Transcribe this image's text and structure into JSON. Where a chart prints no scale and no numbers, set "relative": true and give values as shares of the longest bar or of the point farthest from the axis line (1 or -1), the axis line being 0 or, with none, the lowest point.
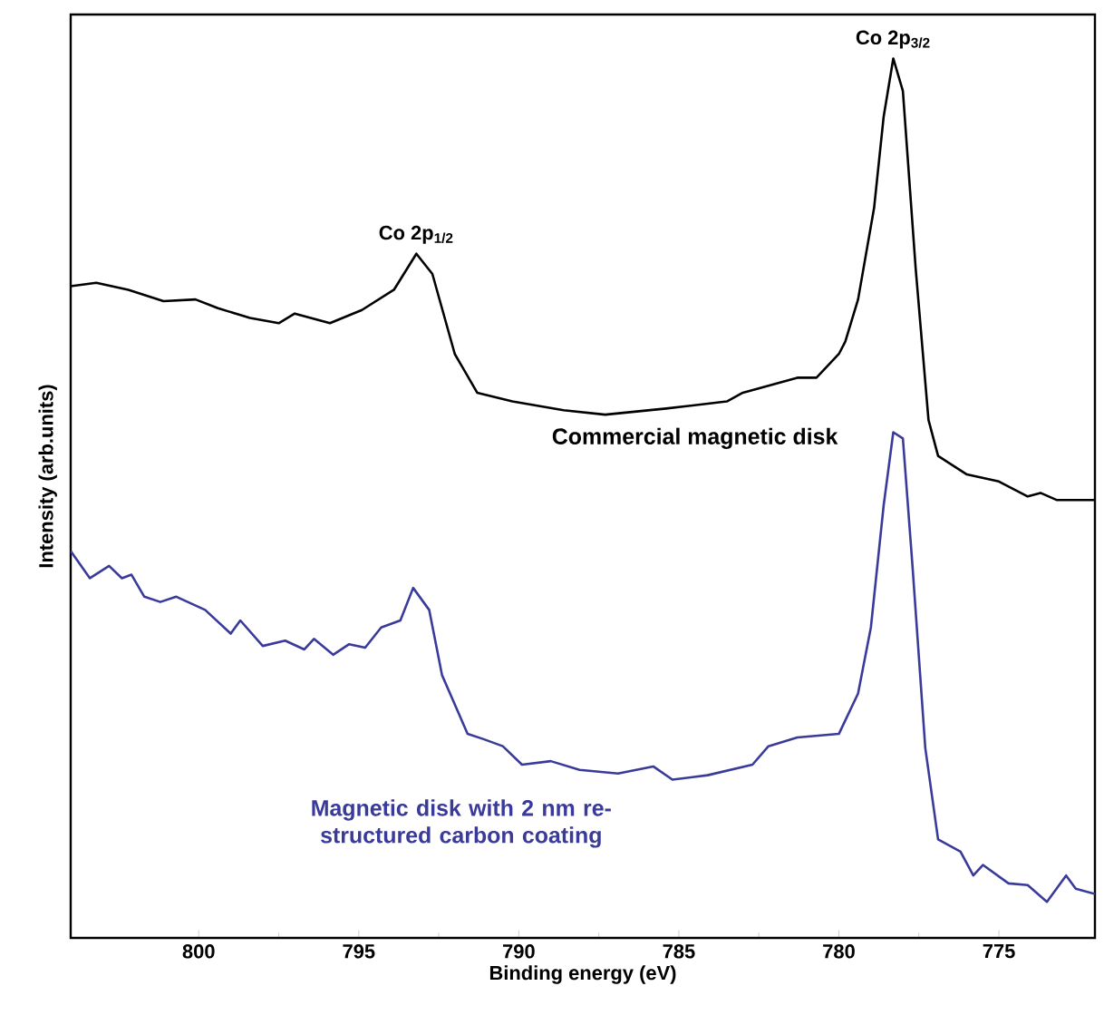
{
  "chart_data": {
    "type": "line",
    "relative": true,
    "xlabel": "Binding energy (eV)",
    "ylabel": "Intensity (arb.units)",
    "xlim": [
      804,
      772
    ],
    "xticks": [
      800,
      795,
      790,
      785,
      780,
      775
    ],
    "annotations": [
      {
        "text": "Co 2p$_{1/2}$",
        "x": 793.2,
        "y": 0.778
      },
      {
        "text": "Co 2p$_{3/2}$",
        "x": 778.3,
        "y": 1
      }
    ],
    "series": [
      {
        "name": "Commercial magnetic disk",
        "color": "#000000",
        "x": [
          804.0,
          803.2,
          802.2,
          801.1,
          800.1,
          799.4,
          798.4,
          797.5,
          797.0,
          795.9,
          794.9,
          793.9,
          793.2,
          792.7,
          792.0,
          791.3,
          790.2,
          788.6,
          787.3,
          785.4,
          783.5,
          783.0,
          781.3,
          780.7,
          780.0,
          779.8,
          779.4,
          778.9,
          778.6,
          778.3,
          778.0,
          777.6,
          777.2,
          776.9,
          776.0,
          775.0,
          774.1,
          773.7,
          773.2,
          772.0
        ],
        "values": [
          0.741,
          0.745,
          0.737,
          0.724,
          0.726,
          0.716,
          0.705,
          0.699,
          0.71,
          0.699,
          0.714,
          0.737,
          0.778,
          0.755,
          0.664,
          0.62,
          0.61,
          0.6,
          0.595,
          0.602,
          0.61,
          0.62,
          0.637,
          0.637,
          0.664,
          0.678,
          0.726,
          0.83,
          0.934,
          1,
          0.963,
          0.761,
          0.589,
          0.548,
          0.527,
          0.519,
          0.502,
          0.506,
          0.498,
          0.498
        ]
      },
      {
        "name": "Magnetic disk with 2 nm re-structured carbon coating",
        "color": "#3a3a9a",
        "x": [
          804.0,
          803.4,
          802.8,
          802.4,
          802.1,
          801.7,
          801.2,
          800.7,
          799.8,
          799.0,
          798.7,
          798.0,
          797.3,
          796.7,
          796.4,
          795.8,
          795.3,
          794.8,
          794.3,
          793.7,
          793.3,
          792.8,
          792.4,
          791.6,
          791.1,
          790.5,
          789.9,
          789.0,
          788.1,
          786.9,
          785.8,
          785.2,
          784.1,
          782.7,
          782.2,
          781.3,
          780.0,
          779.4,
          779.0,
          778.6,
          778.3,
          778.0,
          777.7,
          777.3,
          776.9,
          776.2,
          775.8,
          775.5,
          774.7,
          774.1,
          773.5,
          772.9,
          772.6,
          772.0
        ],
        "values": [
          0.44,
          0.409,
          0.423,
          0.409,
          0.413,
          0.388,
          0.382,
          0.388,
          0.373,
          0.346,
          0.361,
          0.332,
          0.338,
          0.328,
          0.34,
          0.322,
          0.334,
          0.33,
          0.353,
          0.361,
          0.398,
          0.373,
          0.299,
          0.232,
          0.226,
          0.218,
          0.197,
          0.201,
          0.191,
          0.187,
          0.195,
          0.18,
          0.185,
          0.197,
          0.218,
          0.228,
          0.232,
          0.278,
          0.353,
          0.492,
          0.575,
          0.568,
          0.423,
          0.216,
          0.112,
          0.098,
          0.071,
          0.083,
          0.062,
          0.06,
          0.041,
          0.071,
          0.056,
          0.05
        ]
      }
    ]
  }
}
